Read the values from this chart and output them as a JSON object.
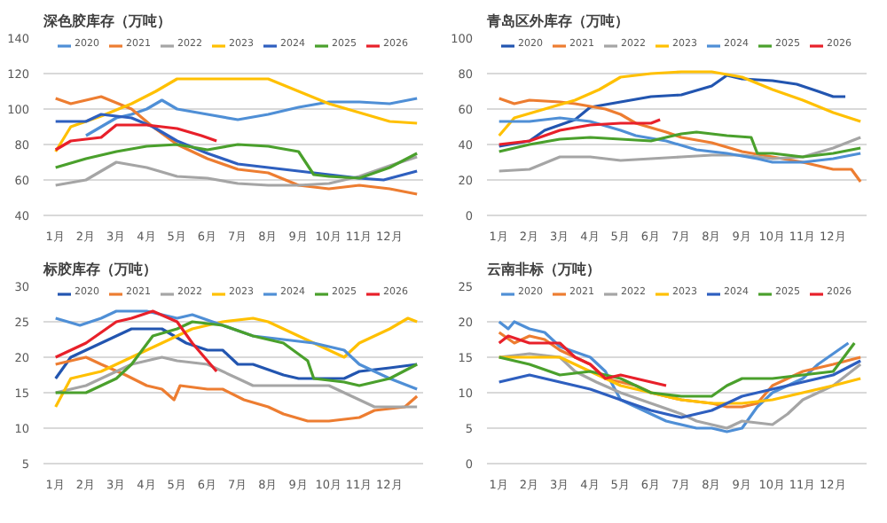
{
  "chart_data": [
    {
      "type": "line",
      "title": "深色胶库存（万吨）",
      "xlim": [
        0.6,
        13.1
      ],
      "xticks": [
        {
          "value": 1,
          "label": "1月"
        },
        {
          "value": 2,
          "label": "2月"
        },
        {
          "value": 3,
          "label": "3月"
        },
        {
          "value": 4,
          "label": "4月"
        },
        {
          "value": 5,
          "label": "5月"
        },
        {
          "value": 6,
          "label": "6月"
        },
        {
          "value": 7,
          "label": "7月"
        },
        {
          "value": 8,
          "label": "8月"
        },
        {
          "value": 9,
          "label": "9月"
        },
        {
          "value": 10,
          "label": "10月"
        },
        {
          "value": 11,
          "label": "11月"
        },
        {
          "value": 12,
          "label": "12月"
        }
      ],
      "ylim": [
        40,
        140
      ],
      "yticks": [
        40,
        60,
        80,
        100,
        120,
        140
      ],
      "grid": "y",
      "legend": "top",
      "series": [
        {
          "name": "2020",
          "color": "#4f8fd6",
          "x": [
            2,
            2.5,
            3,
            3.5,
            4,
            4.5,
            5,
            6,
            7,
            8,
            9,
            10,
            11,
            12,
            12.9
          ],
          "values": [
            85,
            90,
            95,
            97,
            100,
            105,
            100,
            97,
            94,
            97,
            101,
            104,
            104,
            103,
            106
          ]
        },
        {
          "name": "2021",
          "color": "#ed7d31",
          "x": [
            1,
            1.5,
            2.5,
            3.5,
            4.2,
            5,
            6,
            7,
            8,
            9,
            10,
            11,
            12,
            12.9
          ],
          "values": [
            106,
            103,
            107,
            100,
            90,
            80,
            72,
            66,
            64,
            57,
            55,
            57,
            55,
            52
          ]
        },
        {
          "name": "2022",
          "color": "#a5a5a5",
          "x": [
            1,
            2,
            3,
            4,
            5,
            6,
            7,
            8,
            9,
            10,
            11,
            12,
            12.9
          ],
          "values": [
            57,
            60,
            70,
            67,
            62,
            61,
            58,
            57,
            57,
            58,
            62,
            68,
            73
          ]
        },
        {
          "name": "2023",
          "color": "#ffc000",
          "x": [
            1,
            1.5,
            2.5,
            3.5,
            4.3,
            5,
            6,
            7,
            8,
            9,
            10,
            11,
            12,
            12.9
          ],
          "values": [
            76,
            90,
            96,
            103,
            110,
            117,
            117,
            117,
            117,
            110,
            103,
            98,
            93,
            92
          ]
        },
        {
          "name": "2024",
          "color": "#2e5fbf",
          "x": [
            1,
            2,
            2.5,
            3.5,
            4.2,
            5,
            6,
            7,
            8,
            9,
            10,
            11,
            11.8,
            12.9
          ],
          "values": [
            93,
            93,
            97,
            95,
            90,
            82,
            75,
            69,
            67,
            65,
            63,
            61,
            60,
            65
          ]
        },
        {
          "name": "2025",
          "color": "#4aa02c",
          "x": [
            1,
            2,
            3,
            4,
            5,
            6,
            7,
            8,
            9,
            9.5,
            10,
            11,
            12,
            12.9
          ],
          "values": [
            67,
            72,
            76,
            79,
            80,
            77,
            80,
            79,
            76,
            63,
            62,
            61,
            67,
            75
          ]
        },
        {
          "name": "2026",
          "color": "#e8202a",
          "x": [
            1,
            1.5,
            2.5,
            3,
            4,
            5,
            5.8,
            6.3
          ],
          "values": [
            77,
            82,
            84,
            91,
            91,
            89,
            85,
            82
          ]
        }
      ]
    },
    {
      "type": "line",
      "title": "青岛区外库存（万吨）",
      "xlim": [
        0.6,
        13.1
      ],
      "xticks": [
        {
          "value": 1,
          "label": "1月"
        },
        {
          "value": 2,
          "label": "2月"
        },
        {
          "value": 3,
          "label": "3月"
        },
        {
          "value": 4,
          "label": "4月"
        },
        {
          "value": 5,
          "label": "5月"
        },
        {
          "value": 6,
          "label": "6月"
        },
        {
          "value": 7,
          "label": "7月"
        },
        {
          "value": 8,
          "label": "8月"
        },
        {
          "value": 9,
          "label": "9月"
        },
        {
          "value": 10,
          "label": "10月"
        },
        {
          "value": 11,
          "label": "11月"
        },
        {
          "value": 12,
          "label": "12月"
        }
      ],
      "ylim": [
        0,
        100
      ],
      "yticks": [
        0,
        20,
        40,
        60,
        80,
        100
      ],
      "grid": "y",
      "legend": "top",
      "series": [
        {
          "name": "2020",
          "color": "#2255b0",
          "x": [
            1,
            2,
            2.5,
            3.5,
            4,
            5,
            6,
            7,
            8,
            8.5,
            9,
            10,
            10.8,
            11.5,
            12,
            12.4
          ],
          "values": [
            39,
            42,
            48,
            54,
            61,
            64,
            67,
            68,
            73,
            79,
            77,
            76,
            74,
            70,
            67,
            67
          ]
        },
        {
          "name": "2021",
          "color": "#ed7d31",
          "x": [
            1,
            1.5,
            2,
            3,
            3.5,
            4.5,
            5,
            5.5,
            6.5,
            7,
            8,
            9,
            10,
            11,
            12,
            12.6,
            12.9
          ],
          "values": [
            66,
            63,
            65,
            64,
            63,
            60,
            57,
            52,
            47,
            44,
            41,
            36,
            33,
            30,
            26,
            26,
            19
          ]
        },
        {
          "name": "2022",
          "color": "#a5a5a5",
          "x": [
            1,
            2,
            3,
            4,
            5,
            6,
            7,
            8,
            9,
            10,
            11,
            12,
            12.9
          ],
          "values": [
            25,
            26,
            33,
            33,
            31,
            32,
            33,
            34,
            34,
            32,
            33,
            38,
            44
          ]
        },
        {
          "name": "2023",
          "color": "#ffc000",
          "x": [
            1,
            1.5,
            2.5,
            3.5,
            4.3,
            5,
            6,
            7,
            8,
            9,
            10,
            11,
            12,
            12.9
          ],
          "values": [
            45,
            55,
            60,
            65,
            71,
            78,
            80,
            81,
            81,
            78,
            71,
            65,
            58,
            53
          ]
        },
        {
          "name": "2024",
          "color": "#4f8fd6",
          "x": [
            1,
            2,
            3,
            4,
            5,
            5.5,
            6.5,
            7.5,
            8.5,
            9.5,
            10,
            11,
            12,
            12.9
          ],
          "values": [
            53,
            53,
            55,
            53,
            48,
            45,
            42,
            37,
            35,
            32,
            30,
            30,
            32,
            35
          ]
        },
        {
          "name": "2025",
          "color": "#4aa02c",
          "x": [
            1,
            2,
            3,
            4,
            5,
            6,
            7,
            7.5,
            8.5,
            9.3,
            9.5,
            10,
            11,
            12,
            12.9
          ],
          "values": [
            36,
            40,
            43,
            44,
            43,
            42,
            46,
            47,
            45,
            44,
            35,
            35,
            33,
            35,
            38
          ]
        },
        {
          "name": "2026",
          "color": "#e8202a",
          "x": [
            1,
            2,
            3,
            4,
            5,
            6,
            6.3
          ],
          "values": [
            40,
            42,
            48,
            51,
            52,
            52,
            54
          ]
        }
      ]
    },
    {
      "type": "line",
      "title": "标胶库存（万吨）",
      "xlim": [
        0.6,
        13.1
      ],
      "xticks": [
        {
          "value": 1,
          "label": "1月"
        },
        {
          "value": 2,
          "label": "2月"
        },
        {
          "value": 3,
          "label": "3月"
        },
        {
          "value": 4,
          "label": "4月"
        },
        {
          "value": 5,
          "label": "5月"
        },
        {
          "value": 6,
          "label": "6月"
        },
        {
          "value": 7,
          "label": "7月"
        },
        {
          "value": 8,
          "label": "8月"
        },
        {
          "value": 9,
          "label": "9月"
        },
        {
          "value": 10,
          "label": "10月"
        },
        {
          "value": 11,
          "label": "11月"
        },
        {
          "value": 12,
          "label": "12月"
        }
      ],
      "ylim": [
        5,
        30
      ],
      "yticks": [
        5,
        10,
        15,
        20,
        25,
        30
      ],
      "grid": "y",
      "legend": "top",
      "series": [
        {
          "name": "2020",
          "color": "#2255b0",
          "x": [
            1,
            1.5,
            2.5,
            3,
            3.5,
            4,
            4.5,
            5.3,
            6,
            6.5,
            7,
            7.5,
            8.5,
            9,
            10,
            10.5,
            11,
            12,
            12.9
          ],
          "values": [
            17,
            20,
            22,
            23,
            24,
            24,
            24,
            22,
            21,
            21,
            19,
            19,
            17.5,
            17,
            17,
            17,
            18,
            18.5,
            19
          ]
        },
        {
          "name": "2021",
          "color": "#ed7d31",
          "x": [
            1,
            2,
            2.5,
            3.3,
            4,
            4.5,
            4.9,
            5.1,
            6,
            6.5,
            7.2,
            8,
            8.5,
            9.3,
            10,
            11,
            11.5,
            12.5,
            12.9
          ],
          "values": [
            19,
            20,
            19,
            17.5,
            16,
            15.5,
            14,
            16,
            15.5,
            15.5,
            14,
            13,
            12,
            11,
            11,
            11.5,
            12.5,
            13,
            14.5
          ]
        },
        {
          "name": "2022",
          "color": "#a5a5a5",
          "x": [
            1,
            2,
            3,
            3.5,
            4.5,
            5,
            6,
            7,
            7.5,
            8.5,
            10,
            10.5,
            11.5,
            12.9
          ],
          "values": [
            15,
            16,
            18,
            19,
            20,
            19.5,
            19,
            17,
            16,
            16,
            16,
            15,
            13,
            13
          ]
        },
        {
          "name": "2023",
          "color": "#ffc000",
          "x": [
            1,
            1.5,
            2.5,
            3.5,
            4.5,
            5.5,
            6.5,
            7.5,
            8,
            8.5,
            9.5,
            10.5,
            11,
            12,
            12.6,
            12.9
          ],
          "values": [
            13,
            17,
            18,
            20,
            22,
            24,
            25,
            25.5,
            25,
            24,
            22,
            20,
            22,
            24,
            25.5,
            25
          ]
        },
        {
          "name": "2024",
          "color": "#4f8fd6",
          "x": [
            1,
            1.8,
            2.5,
            3,
            4,
            5,
            5.5,
            6.5,
            7.5,
            8.5,
            9.5,
            10.5,
            11,
            12,
            12.9
          ],
          "values": [
            25.5,
            24.5,
            25.5,
            26.5,
            26.5,
            25.5,
            26,
            24.5,
            23,
            22.5,
            22,
            21,
            19,
            17,
            15.5
          ]
        },
        {
          "name": "2025",
          "color": "#4aa02c",
          "x": [
            1,
            2,
            3,
            3.5,
            4.2,
            5,
            5.5,
            6.5,
            7.5,
            8.5,
            9.3,
            9.5,
            10.5,
            11,
            12,
            12.9
          ],
          "values": [
            15,
            15,
            17,
            19,
            23,
            24,
            25,
            24.5,
            23,
            22,
            19.5,
            17,
            16.5,
            16,
            17,
            19
          ]
        },
        {
          "name": "2026",
          "color": "#e8202a",
          "x": [
            1,
            1.5,
            2,
            3,
            3.5,
            4.2,
            5,
            5.5,
            6,
            6.3
          ],
          "values": [
            20,
            21,
            22,
            25,
            25.5,
            26.5,
            25,
            22,
            19.5,
            18
          ]
        }
      ]
    },
    {
      "type": "line",
      "title": "云南非标（万吨）",
      "xlim": [
        0.6,
        13.1
      ],
      "xticks": [
        {
          "value": 1,
          "label": "1月"
        },
        {
          "value": 2,
          "label": "2月"
        },
        {
          "value": 3,
          "label": "3月"
        },
        {
          "value": 4,
          "label": "4月"
        },
        {
          "value": 5,
          "label": "5月"
        },
        {
          "value": 6,
          "label": "6月"
        },
        {
          "value": 7,
          "label": "7月"
        },
        {
          "value": 8,
          "label": "8月"
        },
        {
          "value": 9,
          "label": "9月"
        },
        {
          "value": 10,
          "label": "10月"
        },
        {
          "value": 11,
          "label": "11月"
        },
        {
          "value": 12,
          "label": "12月"
        }
      ],
      "ylim": [
        0,
        25
      ],
      "yticks": [
        0,
        5,
        10,
        15,
        20,
        25
      ],
      "grid": "y",
      "legend": "top",
      "series": [
        {
          "name": "2020",
          "color": "#4f8fd6",
          "x": [
            1,
            1.3,
            1.5,
            2,
            2.5,
            3,
            4,
            4.5,
            5,
            6,
            6.5,
            7.5,
            8,
            8.5,
            9,
            9.5,
            10,
            11,
            11.5,
            12.5
          ],
          "values": [
            20,
            19,
            20,
            19,
            18.5,
            16.5,
            15,
            13,
            9,
            7,
            6,
            5,
            5,
            4.5,
            5,
            8,
            10,
            12,
            14,
            17
          ]
        },
        {
          "name": "2021",
          "color": "#ed7d31",
          "x": [
            1,
            1.5,
            2,
            2.5,
            3,
            4,
            4.5,
            5.5,
            6,
            7,
            8,
            8.5,
            9,
            9.5,
            10,
            11,
            12,
            12.9
          ],
          "values": [
            18.5,
            17,
            18,
            17.5,
            16,
            14,
            12,
            11,
            10,
            9,
            8.5,
            8,
            8,
            8.5,
            11,
            13,
            14,
            15
          ]
        },
        {
          "name": "2022",
          "color": "#a5a5a5",
          "x": [
            1,
            2,
            3,
            3.5,
            4.2,
            5,
            6,
            7,
            7.5,
            8.5,
            9,
            10,
            10.5,
            11,
            12,
            12.9
          ],
          "values": [
            15,
            15.5,
            15,
            13,
            11.5,
            10,
            8.5,
            7,
            6,
            5,
            6,
            5.5,
            7,
            9,
            11,
            14
          ]
        },
        {
          "name": "2023",
          "color": "#ffc000",
          "x": [
            1,
            2,
            3,
            4,
            5,
            6,
            7,
            8,
            9,
            10,
            11,
            12,
            12.9
          ],
          "values": [
            15,
            15,
            15,
            13,
            11,
            10,
            9,
            8.5,
            8.5,
            9,
            10,
            11,
            12
          ]
        },
        {
          "name": "2024",
          "color": "#2e5fbf",
          "x": [
            1,
            2,
            3,
            4,
            5,
            6,
            7,
            8,
            9,
            10,
            11,
            12,
            12.9
          ],
          "values": [
            11.5,
            12.5,
            11.5,
            10.5,
            9,
            7.5,
            6.5,
            7.5,
            9.5,
            10.5,
            11.5,
            12.5,
            14.5
          ]
        },
        {
          "name": "2025",
          "color": "#4aa02c",
          "x": [
            1,
            2,
            3,
            4,
            5,
            6,
            7,
            8,
            8.5,
            9,
            10,
            11,
            12,
            12.7
          ],
          "values": [
            15,
            14,
            12.5,
            13,
            12,
            10,
            9.5,
            9.5,
            11,
            12,
            12,
            12.5,
            13,
            17
          ]
        },
        {
          "name": "2026",
          "color": "#e8202a",
          "x": [
            1,
            1.3,
            2,
            3,
            3.5,
            4,
            4.5,
            5,
            6,
            6.5
          ],
          "values": [
            17,
            18,
            17,
            17,
            15,
            14,
            12,
            12.5,
            11.5,
            11
          ]
        }
      ]
    }
  ]
}
